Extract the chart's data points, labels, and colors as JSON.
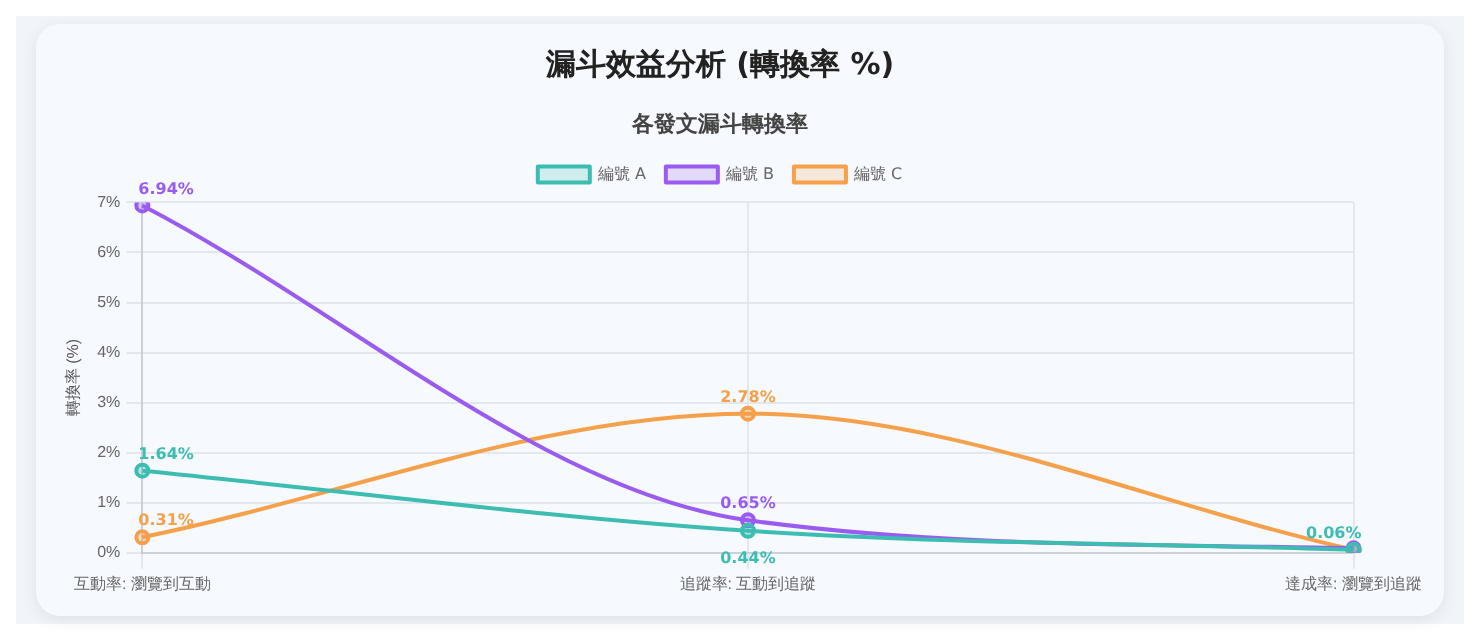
{
  "chart_data": {
    "type": "line",
    "title": "漏斗效益分析 (轉換率 %)",
    "subtitle": "各發文漏斗轉換率",
    "ylabel": "轉換率 (%)",
    "categories": [
      "互動率: 瀏覽到互動",
      "追蹤率: 互動到追蹤",
      "達成率: 瀏覽到追蹤"
    ],
    "series": [
      {
        "name": "編號 A",
        "color": "#3dbdb2",
        "values": [
          1.64,
          0.44,
          0.06
        ],
        "value_labels": [
          "1.64%",
          "0.44%",
          "0.06%"
        ]
      },
      {
        "name": "編號 B",
        "color": "#9a5cf0",
        "values": [
          6.94,
          0.65,
          0.09
        ],
        "value_labels": [
          "6.94%",
          "0.65%",
          null
        ]
      },
      {
        "name": "編號 C",
        "color": "#f5a04a",
        "values": [
          0.31,
          2.78,
          0.06
        ],
        "value_labels": [
          "0.31%",
          "2.78%",
          null
        ]
      }
    ],
    "ylim": [
      0,
      7
    ],
    "yticks": [
      {
        "value": 0,
        "label": "0%"
      },
      {
        "value": 1,
        "label": "1%"
      },
      {
        "value": 2,
        "label": "2%"
      },
      {
        "value": 3,
        "label": "3%"
      },
      {
        "value": 4,
        "label": "4%"
      },
      {
        "value": 5,
        "label": "5%"
      },
      {
        "value": 6,
        "label": "6%"
      },
      {
        "value": 7,
        "label": "7%"
      }
    ],
    "grid": true,
    "legend": "top",
    "marker": "circle",
    "line_style": "solid"
  }
}
